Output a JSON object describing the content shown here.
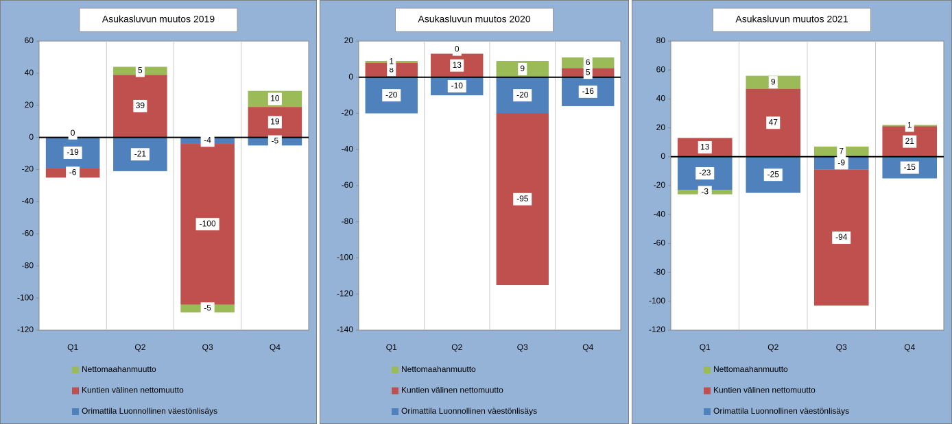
{
  "chart_data": [
    {
      "type": "bar",
      "stacked": true,
      "title": "Asukasluvun muutos 2019",
      "categories": [
        "Q1",
        "Q2",
        "Q3",
        "Q4"
      ],
      "series": [
        {
          "name": "Orimattila Luonnollinen väestönlisäys",
          "color": "#4f81bd",
          "values": [
            -19,
            -21,
            -4,
            -5
          ]
        },
        {
          "name": "Kuntien välinen nettomuutto",
          "color": "#c0504d",
          "values": [
            -6,
            39,
            -100,
            19
          ]
        },
        {
          "name": "Nettomaahanmuutto",
          "color": "#9bbb59",
          "values": [
            0,
            5,
            -5,
            10
          ]
        }
      ],
      "ylim": [
        -120,
        60
      ],
      "yticks": [
        -120,
        -100,
        -80,
        -60,
        -40,
        -20,
        0,
        20,
        40,
        60
      ]
    },
    {
      "type": "bar",
      "stacked": true,
      "title": "Asukasluvun muutos 2020",
      "categories": [
        "Q1",
        "Q2",
        "Q3",
        "Q4"
      ],
      "series": [
        {
          "name": "Orimattila Luonnollinen väestönlisäys",
          "color": "#4f81bd",
          "values": [
            -20,
            -10,
            -20,
            -16
          ]
        },
        {
          "name": "Kuntien välinen nettomuutto",
          "color": "#c0504d",
          "values": [
            8,
            13,
            -95,
            5
          ]
        },
        {
          "name": "Nettomaahanmuutto",
          "color": "#9bbb59",
          "values": [
            1,
            0,
            9,
            6
          ]
        }
      ],
      "ylim": [
        -140,
        20
      ],
      "yticks": [
        -140,
        -120,
        -100,
        -80,
        -60,
        -40,
        -20,
        0,
        20
      ]
    },
    {
      "type": "bar",
      "stacked": true,
      "title": "Asukasluvun muutos 2021",
      "categories": [
        "Q1",
        "Q2",
        "Q3",
        "Q4"
      ],
      "series": [
        {
          "name": "Orimattila Luonnollinen väestönlisäys",
          "color": "#4f81bd",
          "values": [
            -23,
            -25,
            -9,
            -15
          ]
        },
        {
          "name": "Kuntien välinen nettomuutto",
          "color": "#c0504d",
          "values": [
            13,
            47,
            -94,
            21
          ]
        },
        {
          "name": "Nettomaahanmuutto",
          "color": "#9bbb59",
          "values": [
            -3,
            9,
            7,
            1
          ]
        }
      ],
      "ylim": [
        -120,
        80
      ],
      "yticks": [
        -120,
        -100,
        -80,
        -60,
        -40,
        -20,
        0,
        20,
        40,
        60,
        80
      ]
    }
  ]
}
